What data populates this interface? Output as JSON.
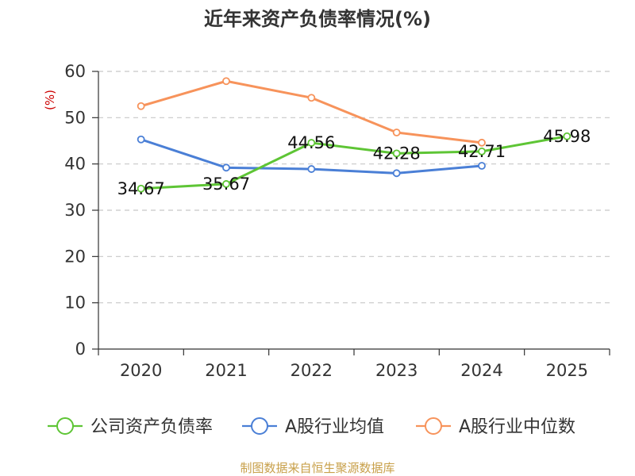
{
  "chart_data": {
    "type": "line",
    "title": "近年来资产负债率情况(%)",
    "ylabel": "(%)",
    "ylim": [
      0,
      60
    ],
    "yticks": [
      0,
      10,
      20,
      30,
      40,
      50,
      60
    ],
    "categories": [
      "2020",
      "2021",
      "2022",
      "2023",
      "2024",
      "2025"
    ],
    "series": [
      {
        "name": "公司资产负债率",
        "color": "#5ec535",
        "values": [
          34.67,
          35.67,
          44.56,
          42.28,
          42.71,
          45.98
        ],
        "labels": [
          "34.67",
          "35.67",
          "44.56",
          "42.28",
          "42.71",
          "45.98"
        ]
      },
      {
        "name": "A股行业均值",
        "color": "#4a7fd6",
        "values": [
          45.3,
          39.2,
          38.9,
          38.0,
          39.6,
          null
        ]
      },
      {
        "name": "A股行业中位数",
        "color": "#f7935b",
        "values": [
          52.5,
          57.9,
          54.3,
          46.8,
          44.6,
          null
        ]
      }
    ],
    "grid": true,
    "legend_position": "bottom"
  },
  "source": "制图数据来自恒生聚源数据库"
}
